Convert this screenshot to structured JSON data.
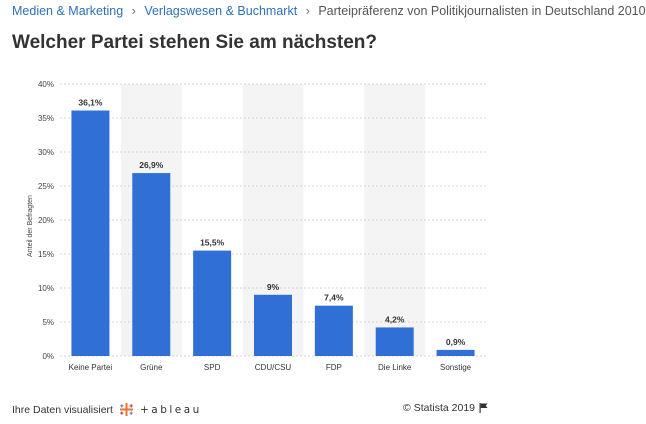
{
  "breadcrumb": {
    "items": [
      "Medien & Marketing",
      "Verlagswesen & Buchmarkt",
      "Parteipräferenz von Politikjournalisten in Deutschland 2010"
    ],
    "separator": "›"
  },
  "page_title": "Welcher Partei stehen Sie am nächsten?",
  "footer": {
    "visualize_text": "Ihre Daten visualisiert",
    "tableau_word": "+ableau",
    "copyright": "© Statista 2019",
    "tableau_icon": "tableau-logo-icon",
    "flag_icon": "flag-icon"
  },
  "colors": {
    "bar": "#2f6fd6",
    "stripe": "#f4f4f4",
    "grid": "#d5d5d5",
    "accent_link": "#2f6fb8"
  },
  "chart_data": {
    "type": "bar",
    "categories": [
      "Keine Partei",
      "Grüne",
      "SPD",
      "CDU/CSU",
      "FDP",
      "Die Linke",
      "Sonstige"
    ],
    "values": [
      36.1,
      26.9,
      15.5,
      9,
      7.4,
      4.2,
      0.9
    ],
    "value_labels": [
      "36,1%",
      "26,9%",
      "15,5%",
      "9%",
      "7,4%",
      "4,2%",
      "0,9%"
    ],
    "title": "Welcher Partei stehen Sie am nächsten?",
    "xlabel": "",
    "ylabel": "Anteil der Befragten",
    "ylim": [
      0,
      40
    ],
    "yticks": [
      0,
      5,
      10,
      15,
      20,
      25,
      30,
      35,
      40
    ],
    "ytick_labels": [
      "0%",
      "5%",
      "10%",
      "15%",
      "20%",
      "25%",
      "30%",
      "35%",
      "40%"
    ],
    "grid": true,
    "legend": "none"
  }
}
